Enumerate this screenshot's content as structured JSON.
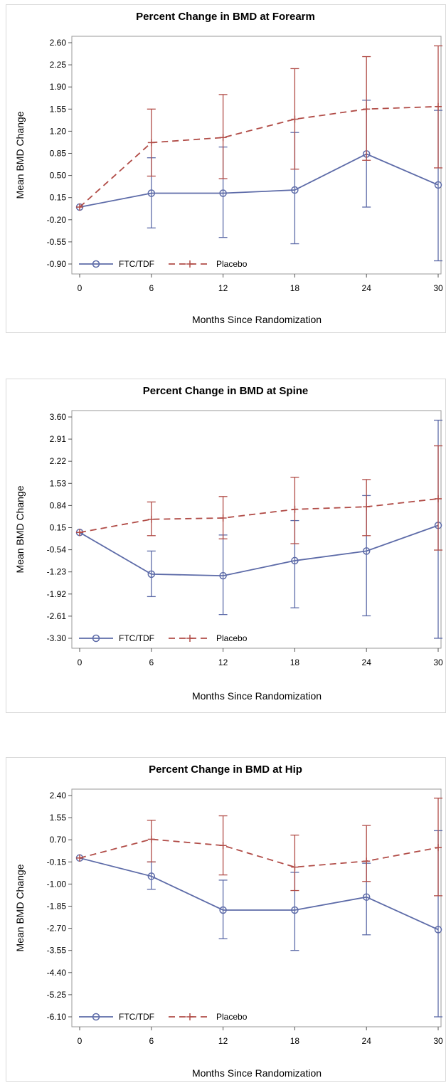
{
  "chart_data": [
    {
      "type": "line",
      "title": "Percent Change in BMD at Forearm",
      "xlabel": "Months Since Randomization",
      "ylabel": "Mean BMD Change",
      "x": [
        0,
        6,
        12,
        18,
        24,
        30
      ],
      "xticks": [
        "0",
        "6",
        "12",
        "18",
        "24",
        "30"
      ],
      "ylim": [
        -0.9,
        2.6
      ],
      "yticks": [
        "2.60",
        "2.25",
        "1.90",
        "1.55",
        "1.20",
        "0.85",
        "0.50",
        "0.15",
        "-0.20",
        "-0.55",
        "-0.90"
      ],
      "legend_position": "bottom-left",
      "series": [
        {
          "name": "FTC/TDF",
          "color": "#5d6ba8",
          "marker": "circle",
          "dash": "solid",
          "values": [
            0.0,
            0.22,
            0.22,
            0.27,
            0.84,
            0.35
          ],
          "err_low": [
            0.0,
            -0.33,
            -0.48,
            -0.58,
            0.0,
            -0.85
          ],
          "err_high": [
            0.0,
            0.78,
            0.95,
            1.18,
            1.69,
            1.53
          ]
        },
        {
          "name": "Placebo",
          "color": "#b14c47",
          "marker": "plus",
          "dash": "dashed",
          "values": [
            0.0,
            1.02,
            1.1,
            1.39,
            1.55,
            1.59
          ],
          "err_low": [
            0.0,
            0.49,
            0.45,
            0.6,
            0.74,
            0.62
          ],
          "err_high": [
            0.0,
            1.55,
            1.78,
            2.19,
            2.38,
            2.55
          ]
        }
      ]
    },
    {
      "type": "line",
      "title": "Percent Change in BMD at Spine",
      "xlabel": "Months Since Randomization",
      "ylabel": "Mean BMD Change",
      "x": [
        0,
        6,
        12,
        18,
        24,
        30
      ],
      "xticks": [
        "0",
        "6",
        "12",
        "18",
        "24",
        "30"
      ],
      "ylim": [
        -3.3,
        3.6
      ],
      "yticks": [
        "3.60",
        "2.91",
        "2.22",
        "1.53",
        "0.84",
        "0.15",
        "-0.54",
        "-1.23",
        "-1.92",
        "-2.61",
        "-3.30"
      ],
      "legend_position": "bottom-left",
      "series": [
        {
          "name": "FTC/TDF",
          "color": "#5d6ba8",
          "marker": "circle",
          "dash": "solid",
          "values": [
            0.0,
            -1.3,
            -1.35,
            -0.88,
            -0.58,
            0.22
          ],
          "err_low": [
            0.0,
            -2.0,
            -2.56,
            -2.35,
            -2.6,
            -3.3
          ],
          "err_high": [
            0.0,
            -0.58,
            -0.08,
            0.37,
            1.15,
            3.5
          ]
        },
        {
          "name": "Placebo",
          "color": "#b14c47",
          "marker": "plus",
          "dash": "dashed",
          "values": [
            0.0,
            0.41,
            0.45,
            0.72,
            0.8,
            1.05
          ],
          "err_low": [
            0.0,
            -0.1,
            -0.2,
            -0.35,
            -0.1,
            -0.55
          ],
          "err_high": [
            0.0,
            0.95,
            1.12,
            1.72,
            1.65,
            2.7
          ]
        }
      ]
    },
    {
      "type": "line",
      "title": "Percent Change in BMD at Hip",
      "xlabel": "Months Since Randomization",
      "ylabel": "Mean BMD Change",
      "x": [
        0,
        6,
        12,
        18,
        24,
        30
      ],
      "xticks": [
        "0",
        "6",
        "12",
        "18",
        "24",
        "30"
      ],
      "ylim": [
        -6.1,
        2.4
      ],
      "yticks": [
        "2.40",
        "1.55",
        "0.70",
        "-0.15",
        "-1.00",
        "-1.85",
        "-2.70",
        "-3.55",
        "-4.40",
        "-5.25",
        "-6.10"
      ],
      "legend_position": "bottom-left",
      "series": [
        {
          "name": "FTC/TDF",
          "color": "#5d6ba8",
          "marker": "circle",
          "dash": "solid",
          "values": [
            0.0,
            -0.7,
            -2.0,
            -2.0,
            -1.5,
            -2.75
          ],
          "err_low": [
            0.0,
            -1.2,
            -3.1,
            -3.55,
            -2.95,
            -6.1
          ],
          "err_high": [
            0.0,
            -0.15,
            -0.85,
            -0.55,
            -0.2,
            1.05
          ]
        },
        {
          "name": "Placebo",
          "color": "#b14c47",
          "marker": "plus",
          "dash": "dashed",
          "values": [
            0.0,
            0.72,
            0.48,
            -0.35,
            -0.12,
            0.4
          ],
          "err_low": [
            0.0,
            -0.15,
            -0.65,
            -1.25,
            -0.9,
            -1.45
          ],
          "err_high": [
            0.0,
            1.45,
            1.62,
            0.88,
            1.25,
            2.3
          ]
        }
      ]
    }
  ]
}
